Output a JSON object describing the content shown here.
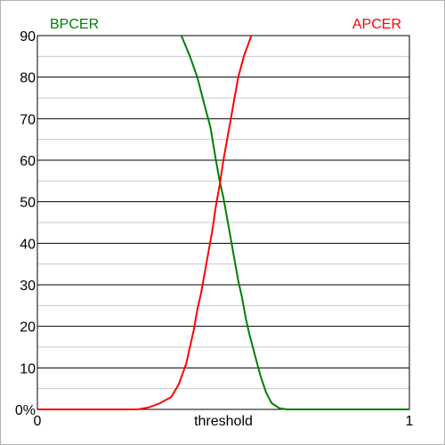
{
  "chart_data": {
    "type": "line",
    "xlabel": "threshold",
    "x_tick_labels": [
      "0",
      "1"
    ],
    "y_tick_labels": [
      "0%",
      "10",
      "20",
      "30",
      "40",
      "50",
      "60",
      "70",
      "80",
      "90"
    ],
    "xlim": [
      0,
      1
    ],
    "ylim": [
      0,
      90
    ],
    "grid": true,
    "series": [
      {
        "name": "BPCER",
        "color": "#008000",
        "legend_position": "top-left",
        "x": [
          0.387,
          0.41,
          0.43,
          0.45,
          0.465,
          0.48,
          0.49,
          0.5,
          0.51,
          0.52,
          0.53,
          0.54,
          0.55,
          0.56,
          0.57,
          0.585,
          0.6,
          0.615,
          0.63,
          0.65,
          0.67,
          1.0
        ],
        "y": [
          90,
          85,
          80,
          73,
          68,
          60,
          55,
          51,
          46,
          41,
          36,
          31,
          27,
          22,
          18,
          13,
          8,
          4,
          1.5,
          0.3,
          0,
          0
        ]
      },
      {
        "name": "APCER",
        "color": "#ff0000",
        "legend_position": "top-right",
        "x": [
          0,
          0.27,
          0.3,
          0.33,
          0.36,
          0.38,
          0.4,
          0.41,
          0.42,
          0.43,
          0.44,
          0.45,
          0.46,
          0.47,
          0.48,
          0.49,
          0.5,
          0.51,
          0.52,
          0.53,
          0.54,
          0.555,
          0.575
        ],
        "y": [
          0,
          0,
          0.5,
          1.5,
          3,
          6,
          11,
          15,
          19,
          24,
          28,
          33,
          38,
          43,
          49,
          54,
          60,
          65,
          70,
          75,
          80,
          85,
          90
        ]
      }
    ]
  }
}
